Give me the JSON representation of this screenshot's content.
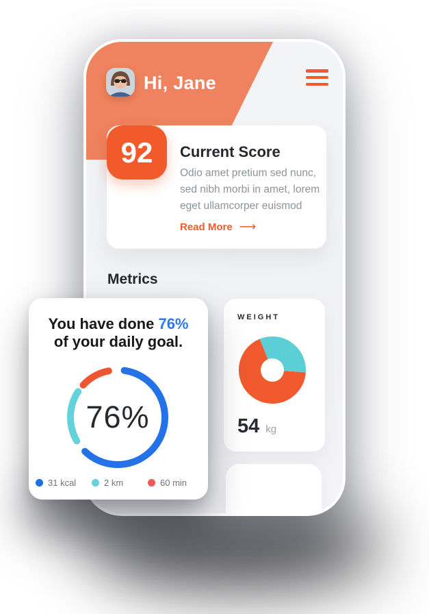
{
  "app": {
    "header": {
      "greeting": "Hi, Jane"
    },
    "score_card": {
      "score": "92",
      "title": "Current Score",
      "description": "Odio amet pretium sed nunc, sed nibh morbi in amet, lorem eget ullamcorper euismod",
      "read_more_label": "Read More",
      "arrow_glyph": "⟶"
    },
    "metrics_heading": "Metrics",
    "goal_card": {
      "line1_prefix": "You have done ",
      "highlight": "76%",
      "line2": "of your daily goal.",
      "center_label": "76%"
    },
    "weight_card": {
      "title": "WEIGHT",
      "value": "54",
      "unit": "kg"
    }
  },
  "colors": {
    "header_salmon": "#F0835F",
    "accent_orange": "#F15A2B",
    "blue": "#2571E8",
    "teal": "#63D2DA",
    "red": "#EC5B57",
    "dark_text": "#23272E",
    "gray_text": "#8D939B"
  },
  "chart_data": [
    {
      "id": "daily-goal-ring",
      "type": "donut",
      "title": "You have done 76% of your daily goal.",
      "center_label": "76%",
      "percent_complete": 76,
      "stroke_width": 10,
      "linecap": "round",
      "legend_position": "bottom",
      "series": [
        {
          "name": "calories",
          "label": "31 kcal",
          "color": "#1D6FE2",
          "arc_color": "#2571E8",
          "start_deg": 8,
          "end_deg": 224
        },
        {
          "name": "distance",
          "label": "2 km",
          "color": "#63D2DA",
          "arc_color": "#63D2DA",
          "start_deg": 240,
          "end_deg": 303
        },
        {
          "name": "duration",
          "label": "60 min",
          "color": "#EC5B57",
          "arc_color": "#EE5532",
          "start_deg": 313,
          "end_deg": 349
        }
      ]
    },
    {
      "id": "weight-donut",
      "type": "donut",
      "title": "WEIGHT",
      "value": 54,
      "unit": "kg",
      "stroke_width": 32,
      "linecap": "butt",
      "series": [
        {
          "name": "weight-main",
          "color": "#F05A2E",
          "start_deg": 94,
          "end_deg": 338
        },
        {
          "name": "weight-secondary",
          "color": "#5CCFD6",
          "start_deg": 338,
          "end_deg": 94
        }
      ]
    }
  ]
}
